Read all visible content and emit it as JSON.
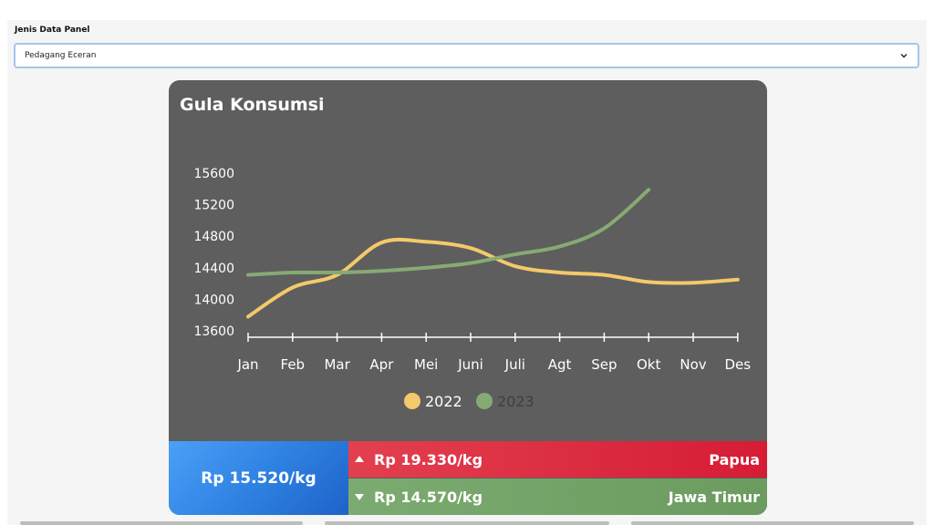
{
  "filter": {
    "label": "Jenis Data Panel",
    "selected": "Pedagang Eceran"
  },
  "card": {
    "title": "Gula Konsumsi",
    "main_price": "Rp 15.520/kg",
    "highest": {
      "price": "Rp 19.330/kg",
      "region": "Papua",
      "color": "#dd2f43"
    },
    "lowest": {
      "price": "Rp 14.570/kg",
      "region": "Jawa Timur",
      "color": "#74a368"
    }
  },
  "chart_data": {
    "type": "line",
    "categories": [
      "Jan",
      "Feb",
      "Mar",
      "Apr",
      "Mei",
      "Juni",
      "Juli",
      "Agt",
      "Sep",
      "Okt",
      "Nov",
      "Des"
    ],
    "series": [
      {
        "name": "2022",
        "color": "#f4c96b",
        "values": [
          13780,
          14150,
          14310,
          14720,
          14730,
          14650,
          14420,
          14340,
          14310,
          14220,
          14210,
          14250
        ]
      },
      {
        "name": "2023",
        "color": "#86aa74",
        "values": [
          14310,
          14340,
          14340,
          14360,
          14400,
          14460,
          14570,
          14670,
          14900,
          15390,
          null,
          null
        ]
      }
    ],
    "yticks": [
      13600,
      14000,
      14400,
      14800,
      15200,
      15600
    ],
    "ylim": [
      13600,
      15600
    ],
    "legend": "bottom-center",
    "grid": false
  }
}
